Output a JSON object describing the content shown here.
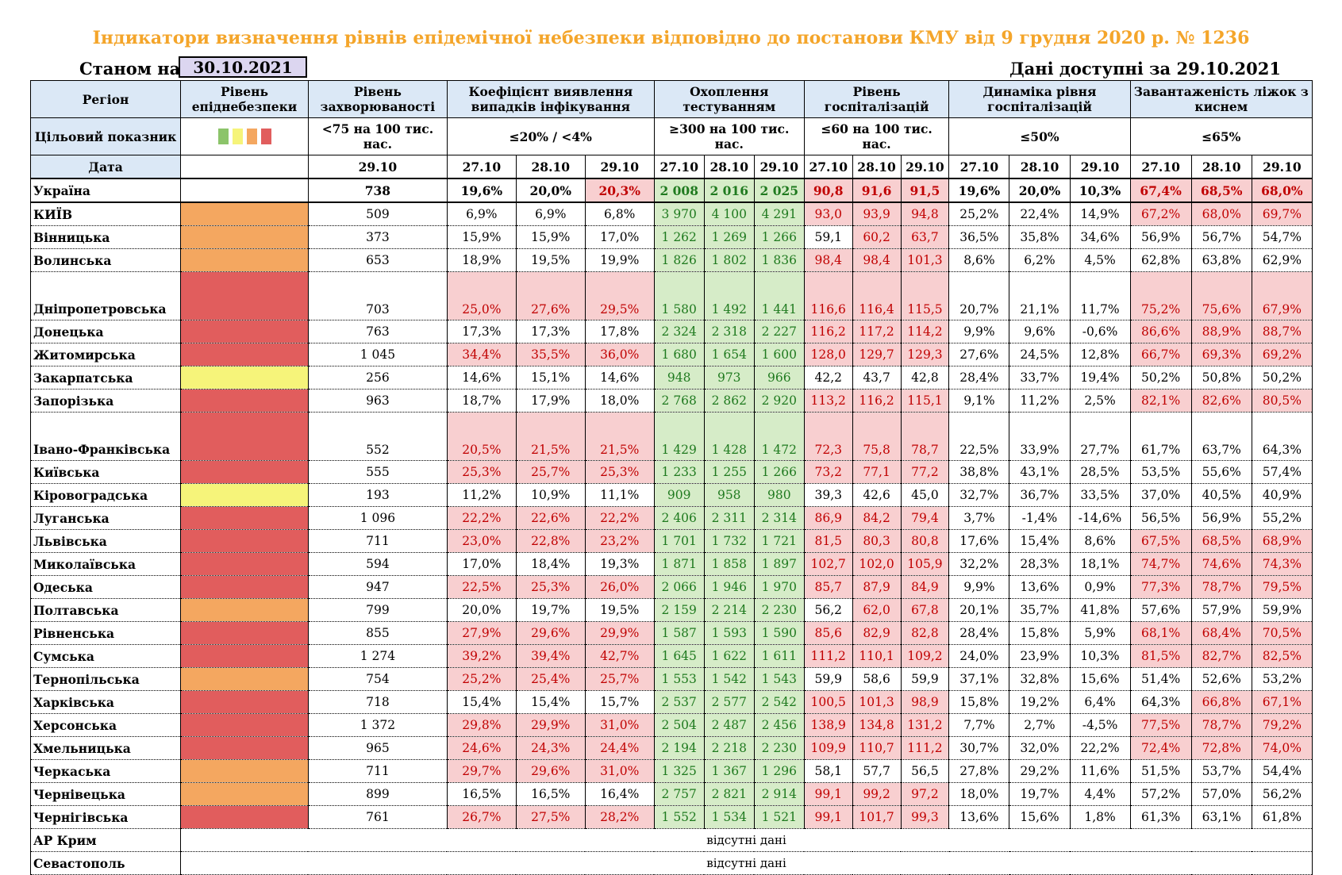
{
  "title": "Індикатори визначення рівнів епідемічної небезпеки відповідно до постанови КМУ від 9 грудня 2020 р. № 1236",
  "as_of_label": "Станом на",
  "as_of_date": "30.10.2021",
  "available_label": "Дані доступні за 29.10.2021",
  "headers": {
    "region": "Регіон",
    "level": "Рівень епіднебезпеки",
    "incidence": "Рівень захворюваності",
    "detection": "Коефіцієнт виявлення випадків інфікування",
    "testing": "Охоплення тестуванням",
    "hosp": "Рівень госпіталізацій",
    "hosp_dyn": "Динаміка рівня госпіталізацій",
    "oxygen": "Завантаженість ліжок з киснем"
  },
  "target": {
    "label": "Цільовий показник",
    "incidence": "<75 на 100 тис. нас.",
    "detection": "≤20% / <4%",
    "testing": "≥300 на 100 тис. нас.",
    "hosp": "≤60 на 100 тис. нас.",
    "hosp_dyn": "≤50%",
    "oxygen": "≤65%"
  },
  "legend_colors": [
    "#8cc46a",
    "#f6f47a",
    "#f4a760",
    "#e15d5d"
  ],
  "date_label": "Дата",
  "dates": {
    "inc": "29.10",
    "d1": "27.10",
    "d2": "28.10",
    "d3": "29.10"
  },
  "ukraine": {
    "name": "Україна",
    "inc": "738",
    "det": [
      "19,6%",
      "20,0%",
      "20,3%"
    ],
    "test": [
      "2 008",
      "2 016",
      "2 025"
    ],
    "hosp": [
      "90,8",
      "91,6",
      "91,5"
    ],
    "dyn": [
      "19,6%",
      "20,0%",
      "10,3%"
    ],
    "oxy": [
      "67,4%",
      "68,5%",
      "68,0%"
    ]
  },
  "regions": [
    {
      "name": "КИЇВ",
      "lvl": "orange",
      "inc": "509",
      "det": [
        "6,9%",
        "6,9%",
        "6,8%"
      ],
      "test": [
        "3 970",
        "4 100",
        "4 291"
      ],
      "hosp": [
        "93,0",
        "93,9",
        "94,8"
      ],
      "dyn": [
        "25,2%",
        "22,4%",
        "14,9%"
      ],
      "oxy": [
        "67,2%",
        "68,0%",
        "69,7%"
      ]
    },
    {
      "name": "Вінницька",
      "lvl": "orange",
      "inc": "373",
      "det": [
        "15,9%",
        "15,9%",
        "17,0%"
      ],
      "test": [
        "1 262",
        "1 269",
        "1 266"
      ],
      "hosp": [
        "59,1",
        "60,2",
        "63,7"
      ],
      "dyn": [
        "36,5%",
        "35,8%",
        "34,6%"
      ],
      "oxy": [
        "56,9%",
        "56,7%",
        "54,7%"
      ]
    },
    {
      "name": "Волинська",
      "lvl": "orange",
      "inc": "653",
      "det": [
        "18,9%",
        "19,5%",
        "19,9%"
      ],
      "test": [
        "1 826",
        "1 802",
        "1 836"
      ],
      "hosp": [
        "98,4",
        "98,4",
        "101,3"
      ],
      "dyn": [
        "8,6%",
        "6,2%",
        "4,5%"
      ],
      "oxy": [
        "62,8%",
        "63,8%",
        "62,9%"
      ]
    },
    {
      "name": "Дніпропетровська",
      "lvl": "red",
      "inc": "703",
      "det": [
        "25,0%",
        "27,6%",
        "29,5%"
      ],
      "test": [
        "1 580",
        "1 492",
        "1 441"
      ],
      "hosp": [
        "116,6",
        "116,4",
        "115,5"
      ],
      "dyn": [
        "20,7%",
        "21,1%",
        "11,7%"
      ],
      "oxy": [
        "75,2%",
        "75,6%",
        "67,9%"
      ]
    },
    {
      "name": "Донецька",
      "lvl": "red",
      "inc": "763",
      "det": [
        "17,3%",
        "17,3%",
        "17,8%"
      ],
      "test": [
        "2 324",
        "2 318",
        "2 227"
      ],
      "hosp": [
        "116,2",
        "117,2",
        "114,2"
      ],
      "dyn": [
        "9,9%",
        "9,6%",
        "-0,6%"
      ],
      "oxy": [
        "86,6%",
        "88,9%",
        "88,7%"
      ]
    },
    {
      "name": "Житомирська",
      "lvl": "red",
      "inc": "1 045",
      "det": [
        "34,4%",
        "35,5%",
        "36,0%"
      ],
      "test": [
        "1 680",
        "1 654",
        "1 600"
      ],
      "hosp": [
        "128,0",
        "129,7",
        "129,3"
      ],
      "dyn": [
        "27,6%",
        "24,5%",
        "12,8%"
      ],
      "oxy": [
        "66,7%",
        "69,3%",
        "69,2%"
      ]
    },
    {
      "name": "Закарпатська",
      "lvl": "yellow",
      "inc": "256",
      "det": [
        "14,6%",
        "15,1%",
        "14,6%"
      ],
      "test": [
        "948",
        "973",
        "966"
      ],
      "hosp": [
        "42,2",
        "43,7",
        "42,8"
      ],
      "dyn": [
        "28,4%",
        "33,7%",
        "19,4%"
      ],
      "oxy": [
        "50,2%",
        "50,8%",
        "50,2%"
      ]
    },
    {
      "name": "Запорізька",
      "lvl": "red",
      "inc": "963",
      "det": [
        "18,7%",
        "17,9%",
        "18,0%"
      ],
      "test": [
        "2 768",
        "2 862",
        "2 920"
      ],
      "hosp": [
        "113,2",
        "116,2",
        "115,1"
      ],
      "dyn": [
        "9,1%",
        "11,2%",
        "2,5%"
      ],
      "oxy": [
        "82,1%",
        "82,6%",
        "80,5%"
      ]
    },
    {
      "name": "Івано-Франківська",
      "lvl": "red",
      "inc": "552",
      "det": [
        "20,5%",
        "21,5%",
        "21,5%"
      ],
      "test": [
        "1 429",
        "1 428",
        "1 472"
      ],
      "hosp": [
        "72,3",
        "75,8",
        "78,7"
      ],
      "dyn": [
        "22,5%",
        "33,9%",
        "27,7%"
      ],
      "oxy": [
        "61,7%",
        "63,7%",
        "64,3%"
      ]
    },
    {
      "name": "Київська",
      "lvl": "red",
      "inc": "555",
      "det": [
        "25,3%",
        "25,7%",
        "25,3%"
      ],
      "test": [
        "1 233",
        "1 255",
        "1 266"
      ],
      "hosp": [
        "73,2",
        "77,1",
        "77,2"
      ],
      "dyn": [
        "38,8%",
        "43,1%",
        "28,5%"
      ],
      "oxy": [
        "53,5%",
        "55,6%",
        "57,4%"
      ]
    },
    {
      "name": "Кіровоградська",
      "lvl": "yellow",
      "inc": "193",
      "det": [
        "11,2%",
        "10,9%",
        "11,1%"
      ],
      "test": [
        "909",
        "958",
        "980"
      ],
      "hosp": [
        "39,3",
        "42,6",
        "45,0"
      ],
      "dyn": [
        "32,7%",
        "36,7%",
        "33,5%"
      ],
      "oxy": [
        "37,0%",
        "40,5%",
        "40,9%"
      ]
    },
    {
      "name": "Луганська",
      "lvl": "red",
      "inc": "1 096",
      "det": [
        "22,2%",
        "22,6%",
        "22,2%"
      ],
      "test": [
        "2 406",
        "2 311",
        "2 314"
      ],
      "hosp": [
        "86,9",
        "84,2",
        "79,4"
      ],
      "dyn": [
        "3,7%",
        "-1,4%",
        "-14,6%"
      ],
      "oxy": [
        "56,5%",
        "56,9%",
        "55,2%"
      ]
    },
    {
      "name": "Львівська",
      "lvl": "red",
      "inc": "711",
      "det": [
        "23,0%",
        "22,8%",
        "23,2%"
      ],
      "test": [
        "1 701",
        "1 732",
        "1 721"
      ],
      "hosp": [
        "81,5",
        "80,3",
        "80,8"
      ],
      "dyn": [
        "17,6%",
        "15,4%",
        "8,6%"
      ],
      "oxy": [
        "67,5%",
        "68,5%",
        "68,9%"
      ]
    },
    {
      "name": "Миколаївська",
      "lvl": "red",
      "inc": "594",
      "det": [
        "17,0%",
        "18,4%",
        "19,3%"
      ],
      "test": [
        "1 871",
        "1 858",
        "1 897"
      ],
      "hosp": [
        "102,7",
        "102,0",
        "105,9"
      ],
      "dyn": [
        "32,2%",
        "28,3%",
        "18,1%"
      ],
      "oxy": [
        "74,7%",
        "74,6%",
        "74,3%"
      ]
    },
    {
      "name": "Одеська",
      "lvl": "red",
      "inc": "947",
      "det": [
        "22,5%",
        "25,3%",
        "26,0%"
      ],
      "test": [
        "2 066",
        "1 946",
        "1 970"
      ],
      "hosp": [
        "85,7",
        "87,9",
        "84,9"
      ],
      "dyn": [
        "9,9%",
        "13,6%",
        "0,9%"
      ],
      "oxy": [
        "77,3%",
        "78,7%",
        "79,5%"
      ]
    },
    {
      "name": "Полтавська",
      "lvl": "orange",
      "inc": "799",
      "det": [
        "20,0%",
        "19,7%",
        "19,5%"
      ],
      "test": [
        "2 159",
        "2 214",
        "2 230"
      ],
      "hosp": [
        "56,2",
        "62,0",
        "67,8"
      ],
      "dyn": [
        "20,1%",
        "35,7%",
        "41,8%"
      ],
      "oxy": [
        "57,6%",
        "57,9%",
        "59,9%"
      ]
    },
    {
      "name": "Рівненська",
      "lvl": "red",
      "inc": "855",
      "det": [
        "27,9%",
        "29,6%",
        "29,9%"
      ],
      "test": [
        "1 587",
        "1 593",
        "1 590"
      ],
      "hosp": [
        "85,6",
        "82,9",
        "82,8"
      ],
      "dyn": [
        "28,4%",
        "15,8%",
        "5,9%"
      ],
      "oxy": [
        "68,1%",
        "68,4%",
        "70,5%"
      ]
    },
    {
      "name": "Сумська",
      "lvl": "red",
      "inc": "1 274",
      "det": [
        "39,2%",
        "39,4%",
        "42,7%"
      ],
      "test": [
        "1 645",
        "1 622",
        "1 611"
      ],
      "hosp": [
        "111,2",
        "110,1",
        "109,2"
      ],
      "dyn": [
        "24,0%",
        "23,9%",
        "10,3%"
      ],
      "oxy": [
        "81,5%",
        "82,7%",
        "82,5%"
      ]
    },
    {
      "name": "Тернопільська",
      "lvl": "orange",
      "inc": "754",
      "det": [
        "25,2%",
        "25,4%",
        "25,7%"
      ],
      "test": [
        "1 553",
        "1 542",
        "1 543"
      ],
      "hosp": [
        "59,9",
        "58,6",
        "59,9"
      ],
      "dyn": [
        "37,1%",
        "32,8%",
        "15,6%"
      ],
      "oxy": [
        "51,4%",
        "52,6%",
        "53,2%"
      ]
    },
    {
      "name": "Харківська",
      "lvl": "red",
      "inc": "718",
      "det": [
        "15,4%",
        "15,4%",
        "15,7%"
      ],
      "test": [
        "2 537",
        "2 577",
        "2 542"
      ],
      "hosp": [
        "100,5",
        "101,3",
        "98,9"
      ],
      "dyn": [
        "15,8%",
        "19,2%",
        "6,4%"
      ],
      "oxy": [
        "64,3%",
        "66,8%",
        "67,1%"
      ]
    },
    {
      "name": "Херсонська",
      "lvl": "red",
      "inc": "1 372",
      "det": [
        "29,8%",
        "29,9%",
        "31,0%"
      ],
      "test": [
        "2 504",
        "2 487",
        "2 456"
      ],
      "hosp": [
        "138,9",
        "134,8",
        "131,2"
      ],
      "dyn": [
        "7,7%",
        "2,7%",
        "-4,5%"
      ],
      "oxy": [
        "77,5%",
        "78,7%",
        "79,2%"
      ]
    },
    {
      "name": "Хмельницька",
      "lvl": "red",
      "inc": "965",
      "det": [
        "24,6%",
        "24,3%",
        "24,4%"
      ],
      "test": [
        "2 194",
        "2 218",
        "2 230"
      ],
      "hosp": [
        "109,9",
        "110,7",
        "111,2"
      ],
      "dyn": [
        "30,7%",
        "32,0%",
        "22,2%"
      ],
      "oxy": [
        "72,4%",
        "72,8%",
        "74,0%"
      ]
    },
    {
      "name": "Черкаська",
      "lvl": "orange",
      "inc": "711",
      "det": [
        "29,7%",
        "29,6%",
        "31,0%"
      ],
      "test": [
        "1 325",
        "1 367",
        "1 296"
      ],
      "hosp": [
        "58,1",
        "57,7",
        "56,5"
      ],
      "dyn": [
        "27,8%",
        "29,2%",
        "11,6%"
      ],
      "oxy": [
        "51,5%",
        "53,7%",
        "54,4%"
      ]
    },
    {
      "name": "Чернівецька",
      "lvl": "orange",
      "inc": "899",
      "det": [
        "16,5%",
        "16,5%",
        "16,4%"
      ],
      "test": [
        "2 757",
        "2 821",
        "2 914"
      ],
      "hosp": [
        "99,1",
        "99,2",
        "97,2"
      ],
      "dyn": [
        "18,0%",
        "19,7%",
        "4,4%"
      ],
      "oxy": [
        "57,2%",
        "57,0%",
        "56,2%"
      ]
    },
    {
      "name": "Чернігівська",
      "lvl": "red",
      "inc": "761",
      "det": [
        "26,7%",
        "27,5%",
        "28,2%"
      ],
      "test": [
        "1 552",
        "1 534",
        "1 521"
      ],
      "hosp": [
        "99,1",
        "101,7",
        "99,3"
      ],
      "dyn": [
        "13,6%",
        "15,6%",
        "1,8%"
      ],
      "oxy": [
        "61,3%",
        "63,1%",
        "61,8%"
      ]
    }
  ],
  "no_data_regions": [
    {
      "name": "АР Крим",
      "text": "відсутні дані"
    },
    {
      "name": "Севастополь",
      "text": "відсутні дані"
    }
  ]
}
